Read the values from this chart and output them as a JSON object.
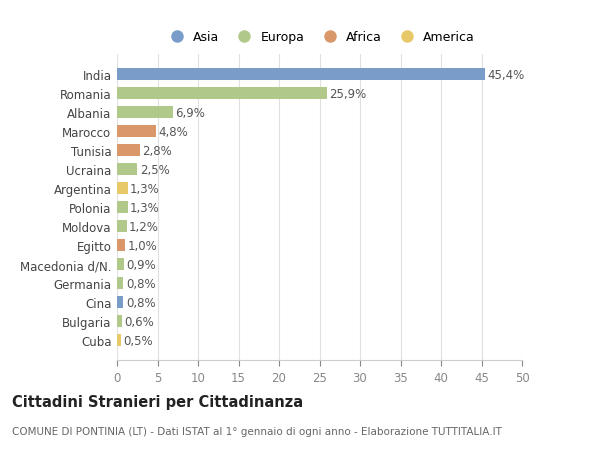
{
  "countries": [
    "India",
    "Romania",
    "Albania",
    "Marocco",
    "Tunisia",
    "Ucraina",
    "Argentina",
    "Polonia",
    "Moldova",
    "Egitto",
    "Macedonia d/N.",
    "Germania",
    "Cina",
    "Bulgaria",
    "Cuba"
  ],
  "values": [
    45.4,
    25.9,
    6.9,
    4.8,
    2.8,
    2.5,
    1.3,
    1.3,
    1.2,
    1.0,
    0.9,
    0.8,
    0.8,
    0.6,
    0.5
  ],
  "labels": [
    "45,4%",
    "25,9%",
    "6,9%",
    "4,8%",
    "2,8%",
    "2,5%",
    "1,3%",
    "1,3%",
    "1,2%",
    "1,0%",
    "0,9%",
    "0,8%",
    "0,8%",
    "0,6%",
    "0,5%"
  ],
  "colors": [
    "#7a9cc9",
    "#b0c98a",
    "#b0c98a",
    "#d9976a",
    "#d9976a",
    "#b0c98a",
    "#e8c96a",
    "#b0c98a",
    "#b0c98a",
    "#d9976a",
    "#b0c98a",
    "#b0c98a",
    "#7a9cc9",
    "#b0c98a",
    "#e8c96a"
  ],
  "legend_labels": [
    "Asia",
    "Europa",
    "Africa",
    "America"
  ],
  "legend_colors": [
    "#7a9cc9",
    "#b0c98a",
    "#d9976a",
    "#e8c96a"
  ],
  "title": "Cittadini Stranieri per Cittadinanza",
  "subtitle": "COMUNE DI PONTINIA (LT) - Dati ISTAT al 1° gennaio di ogni anno - Elaborazione TUTTITALIA.IT",
  "xlabel_ticks": [
    0,
    5,
    10,
    15,
    20,
    25,
    30,
    35,
    40,
    45,
    50
  ],
  "xlim": [
    0,
    50
  ],
  "background_color": "#ffffff",
  "grid_color": "#e0e0e0",
  "bar_height": 0.65,
  "label_fontsize": 8.5,
  "tick_fontsize": 8.5,
  "title_fontsize": 10.5,
  "subtitle_fontsize": 7.5
}
